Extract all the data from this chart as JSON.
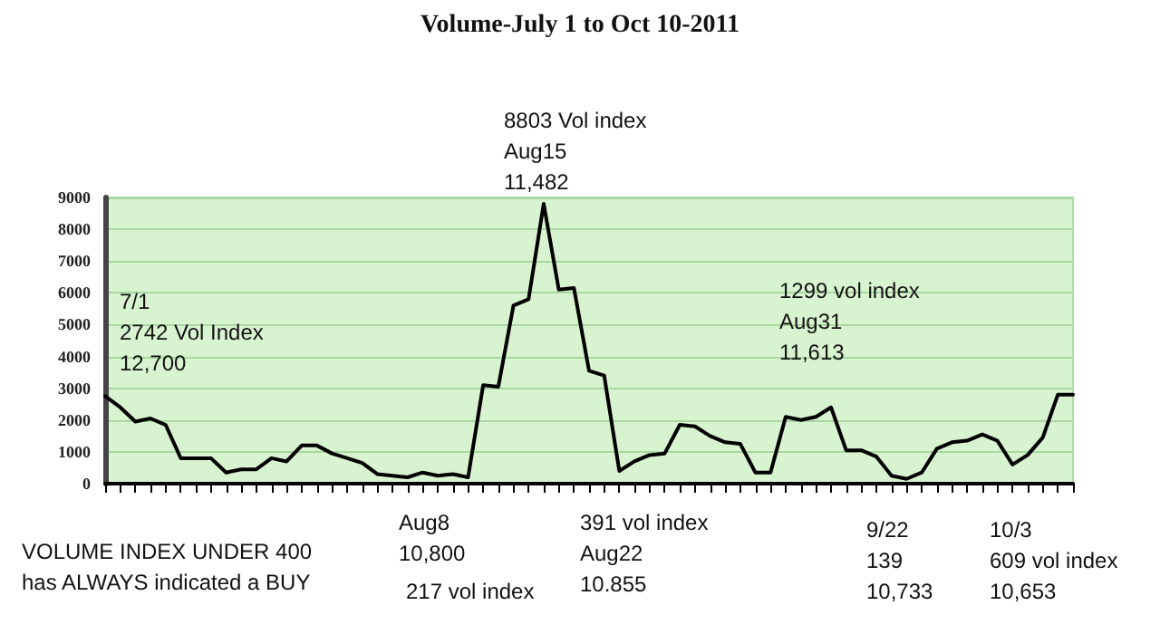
{
  "chart_data": {
    "type": "line",
    "title": "Volume-July 1 to Oct 10-2011",
    "categories": [
      null,
      null,
      null,
      null,
      null,
      null,
      null,
      null,
      null,
      null,
      null,
      null,
      null,
      null,
      null,
      null,
      null,
      null,
      null,
      null,
      null,
      null,
      null,
      null,
      null,
      null,
      null,
      null,
      null,
      null,
      null,
      null,
      null,
      null,
      null,
      null,
      null,
      null,
      null,
      null,
      null,
      null,
      null,
      null,
      null,
      null,
      null,
      null,
      null,
      null,
      null,
      null,
      null,
      null,
      null,
      null,
      null,
      null,
      null,
      null,
      null,
      null,
      null,
      null,
      null
    ],
    "values": [
      2750,
      2400,
      1950,
      2050,
      1850,
      800,
      800,
      800,
      350,
      450,
      450,
      800,
      700,
      1200,
      1200,
      950,
      800,
      650,
      300,
      250,
      200,
      350,
      250,
      300,
      200,
      3100,
      3050,
      5600,
      5800,
      8800,
      6100,
      6150,
      3550,
      3400,
      400,
      700,
      900,
      950,
      1850,
      1800,
      1500,
      1300,
      1250,
      350,
      350,
      2100,
      2000,
      2100,
      2400,
      1050,
      1050,
      850,
      250,
      150,
      350,
      1100,
      1300,
      1350,
      1550,
      1350,
      600,
      900,
      1450,
      2800,
      2800
    ],
    "color": "#000000",
    "ylim": [
      0,
      9000
    ],
    "yticks": [
      0,
      1000,
      2000,
      3000,
      4000,
      5000,
      6000,
      7000,
      8000,
      9000
    ],
    "grid": "y",
    "line_style": "solid",
    "tick_labels": "y",
    "annotations": [
      "7/1\n2742 Vol Index\n12,700",
      "8803 Vol index\nAug15\n11,482",
      "1299 vol index\nAug31\n11,613",
      "VOLUME INDEX UNDER 400\nhas ALWAYS indicated a BUY",
      "Aug8\n10,800",
      "217 vol index",
      "391 vol index\nAug22\n10.855",
      "9/22\n139\n10,733",
      "10/3\n609 vol index\n10,653"
    ]
  }
}
